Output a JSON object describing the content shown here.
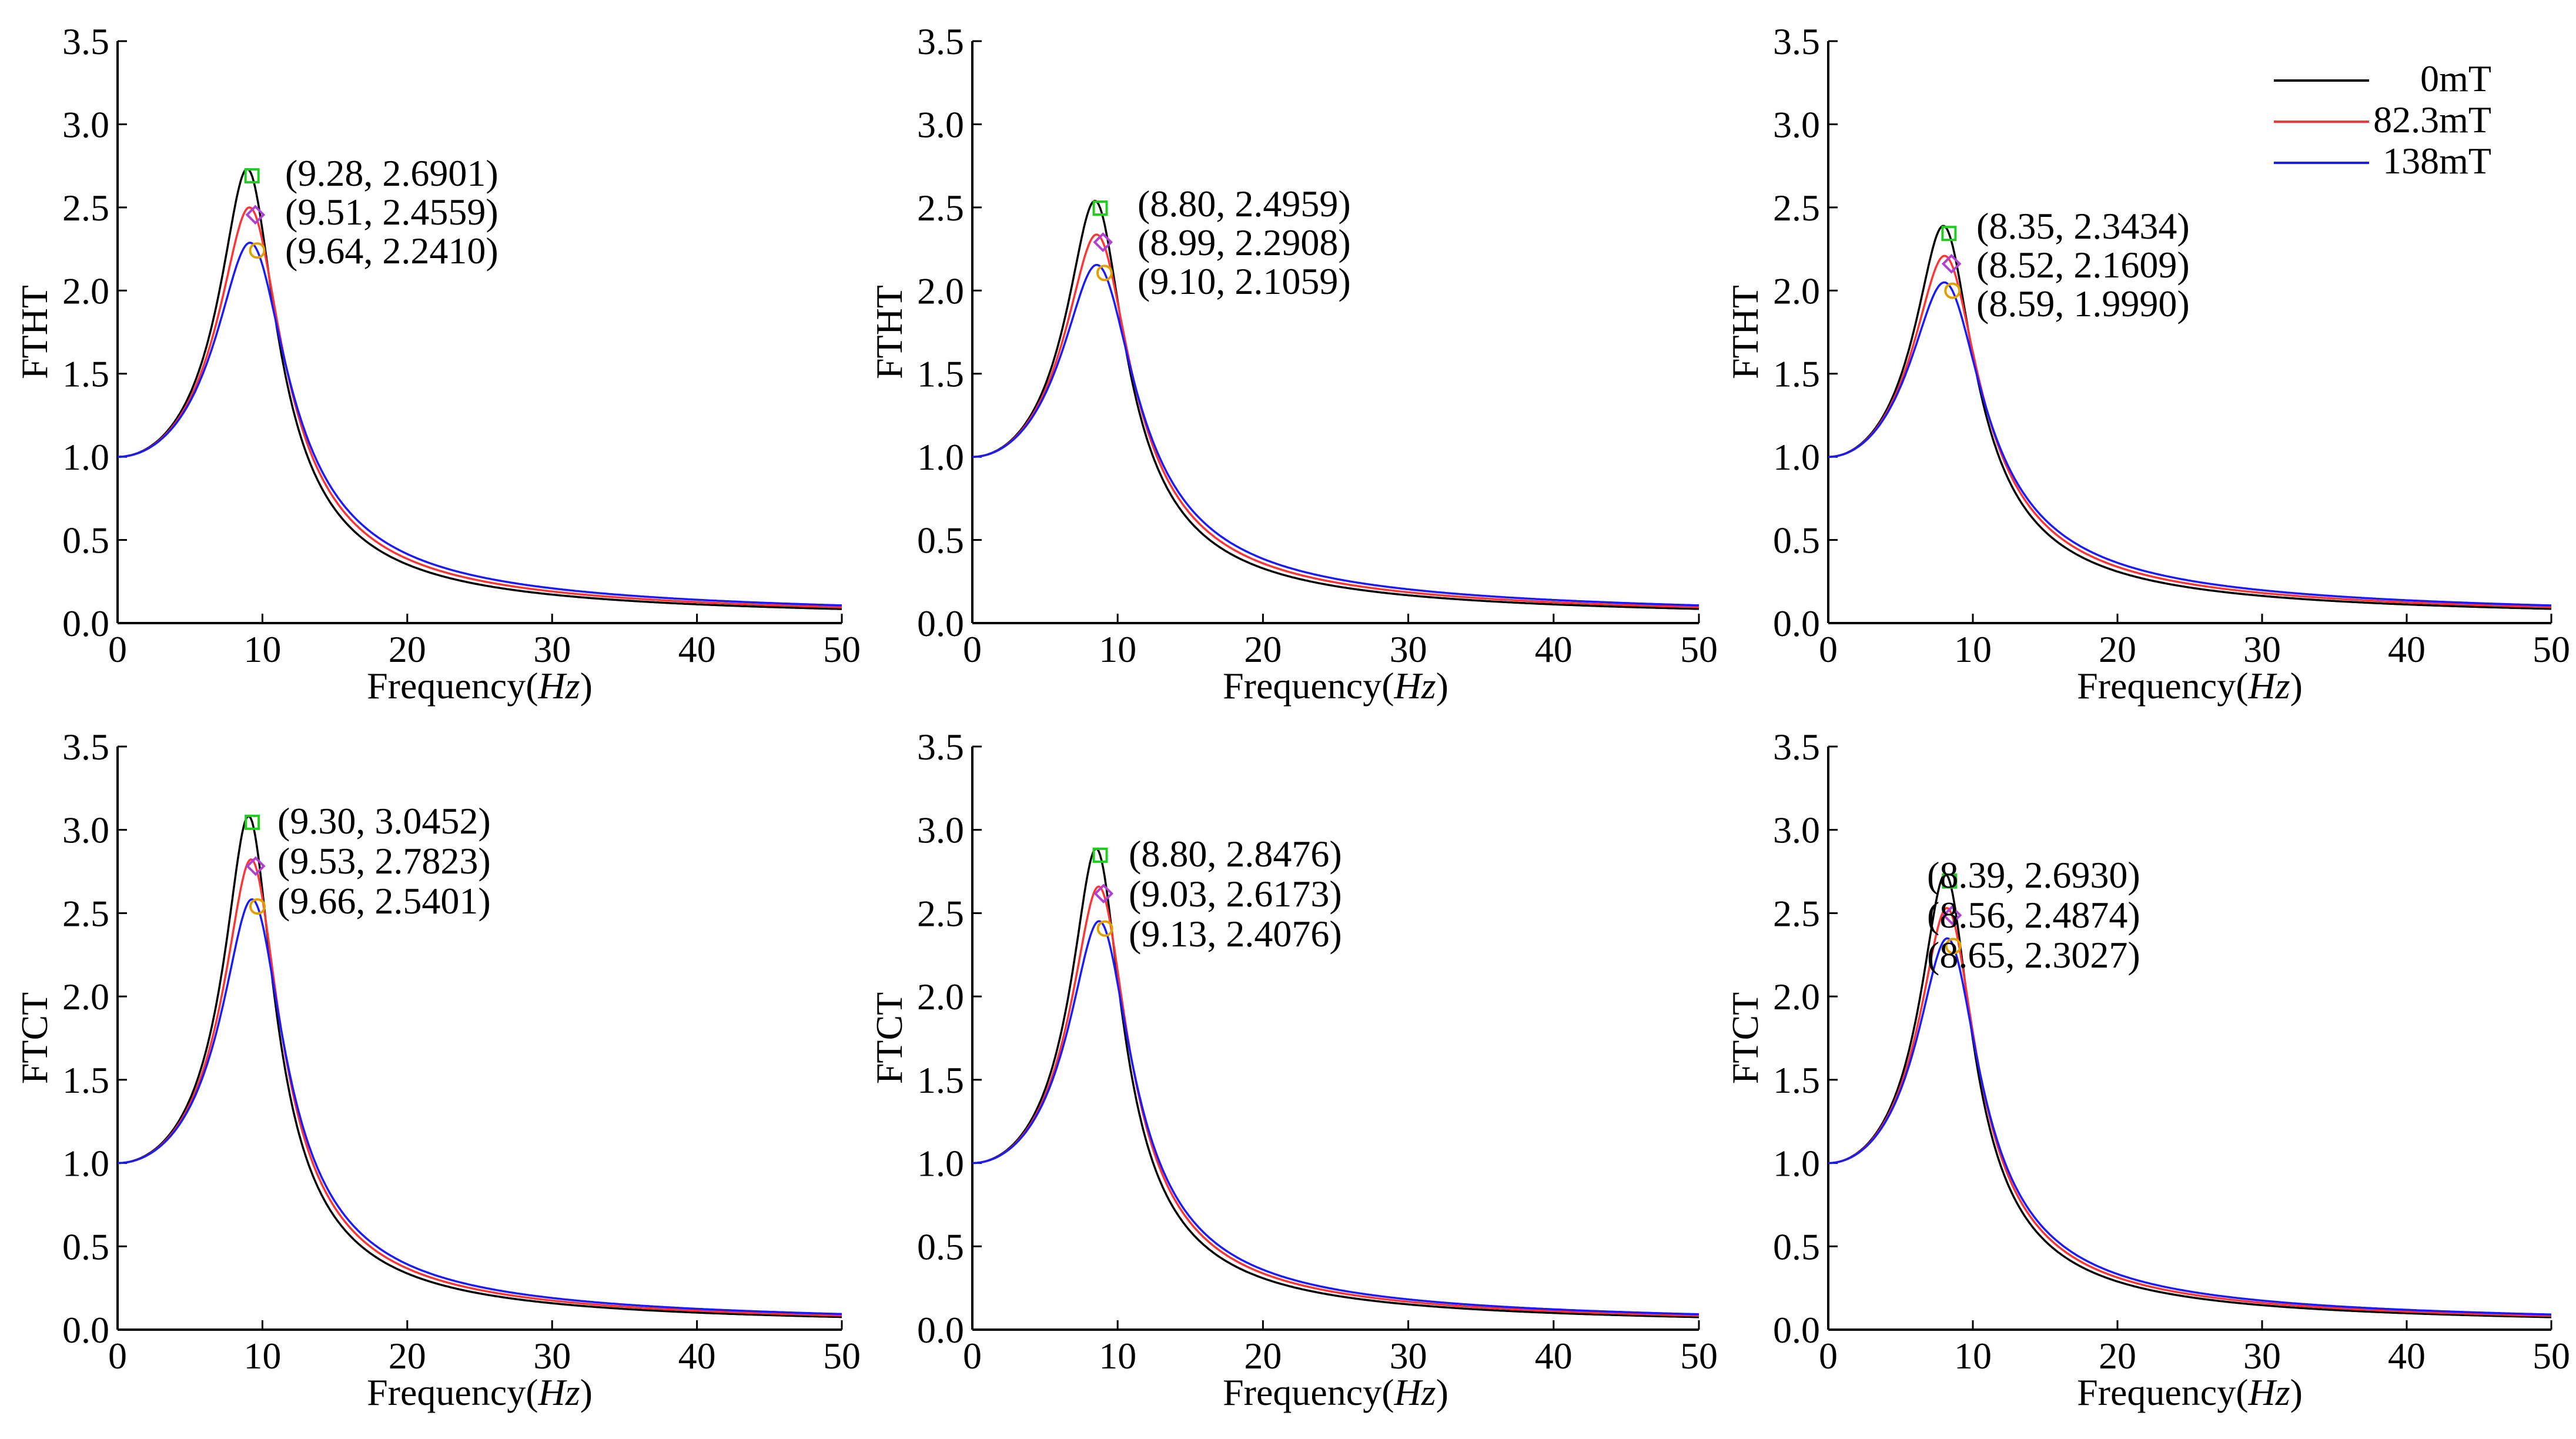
{
  "colors": {
    "s0": "#000000",
    "s1": "#ff3333",
    "s2": "#1a1aff",
    "m0": "#22cc22",
    "m1": "#b040d0",
    "m2": "#e0a000"
  },
  "legend": {
    "entries": [
      {
        "label": "0mT",
        "color": "#000000"
      },
      {
        "label": "82.3mT",
        "color": "#ff3333"
      },
      {
        "label": "138mT",
        "color": "#1a1aff"
      }
    ]
  },
  "chart_data": [
    {
      "type": "line",
      "ylabel": "FTHT",
      "xlabel": "Frequency",
      "xlabel_unit": "Hz",
      "xlim": [
        0,
        50
      ],
      "ylim": [
        0,
        3.5
      ],
      "xticks": [
        "0",
        "10",
        "20",
        "30",
        "40",
        "50"
      ],
      "yticks": [
        "0.0",
        "0.5",
        "1.0",
        "1.5",
        "2.0",
        "2.5",
        "3.0",
        "3.5"
      ],
      "series": [
        {
          "name": "0mT",
          "peak_x": 9.28,
          "peak_y": 2.6901
        },
        {
          "name": "82.3mT",
          "peak_x": 9.51,
          "peak_y": 2.4559
        },
        {
          "name": "138mT",
          "peak_x": 9.64,
          "peak_y": 2.241
        }
      ],
      "annotations": [
        "(9.28, 2.6901)",
        "(9.51, 2.4559)",
        "(9.64, 2.2410)"
      ]
    },
    {
      "type": "line",
      "ylabel": "FTHT",
      "xlabel": "Frequency",
      "xlabel_unit": "Hz",
      "xlim": [
        0,
        50
      ],
      "ylim": [
        0,
        3.5
      ],
      "xticks": [
        "0",
        "10",
        "20",
        "30",
        "40",
        "50"
      ],
      "yticks": [
        "0.0",
        "0.5",
        "1.0",
        "1.5",
        "2.0",
        "2.5",
        "3.0",
        "3.5"
      ],
      "series": [
        {
          "name": "0mT",
          "peak_x": 8.8,
          "peak_y": 2.4959
        },
        {
          "name": "82.3mT",
          "peak_x": 8.99,
          "peak_y": 2.2908
        },
        {
          "name": "138mT",
          "peak_x": 9.1,
          "peak_y": 2.1059
        }
      ],
      "annotations": [
        "(8.80, 2.4959)",
        "(8.99, 2.2908)",
        "(9.10, 2.1059)"
      ]
    },
    {
      "type": "line",
      "ylabel": "FTHT",
      "xlabel": "Frequency",
      "xlabel_unit": "Hz",
      "xlim": [
        0,
        50
      ],
      "ylim": [
        0,
        3.5
      ],
      "xticks": [
        "0",
        "10",
        "20",
        "30",
        "40",
        "50"
      ],
      "yticks": [
        "0.0",
        "0.5",
        "1.0",
        "1.5",
        "2.0",
        "2.5",
        "3.0",
        "3.5"
      ],
      "series": [
        {
          "name": "0mT",
          "peak_x": 8.35,
          "peak_y": 2.3434
        },
        {
          "name": "82.3mT",
          "peak_x": 8.52,
          "peak_y": 2.1609
        },
        {
          "name": "138mT",
          "peak_x": 8.59,
          "peak_y": 1.999
        }
      ],
      "annotations": [
        "(8.35, 2.3434)",
        "(8.52, 2.1609)",
        "(8.59, 1.9990)"
      ]
    },
    {
      "type": "line",
      "ylabel": "FTCT",
      "xlabel": "Frequency",
      "xlabel_unit": "Hz",
      "xlim": [
        0,
        50
      ],
      "ylim": [
        0,
        3.5
      ],
      "xticks": [
        "0",
        "10",
        "20",
        "30",
        "40",
        "50"
      ],
      "yticks": [
        "0.0",
        "0.5",
        "1.0",
        "1.5",
        "2.0",
        "2.5",
        "3.0",
        "3.5"
      ],
      "series": [
        {
          "name": "0mT",
          "peak_x": 9.3,
          "peak_y": 3.0452
        },
        {
          "name": "82.3mT",
          "peak_x": 9.53,
          "peak_y": 2.7823
        },
        {
          "name": "138mT",
          "peak_x": 9.66,
          "peak_y": 2.5401
        }
      ],
      "annotations": [
        "(9.30, 3.0452)",
        "(9.53, 2.7823)",
        "(9.66, 2.5401)"
      ]
    },
    {
      "type": "line",
      "ylabel": "FTCT",
      "xlabel": "Frequency",
      "xlabel_unit": "Hz",
      "xlim": [
        0,
        50
      ],
      "ylim": [
        0,
        3.5
      ],
      "xticks": [
        "0",
        "10",
        "20",
        "30",
        "40",
        "50"
      ],
      "yticks": [
        "0.0",
        "0.5",
        "1.0",
        "1.5",
        "2.0",
        "2.5",
        "3.0",
        "3.5"
      ],
      "series": [
        {
          "name": "0mT",
          "peak_x": 8.8,
          "peak_y": 2.8476
        },
        {
          "name": "82.3mT",
          "peak_x": 9.03,
          "peak_y": 2.6173
        },
        {
          "name": "138mT",
          "peak_x": 9.13,
          "peak_y": 2.4076
        }
      ],
      "annotations": [
        "(8.80, 2.8476)",
        "(9.03, 2.6173)",
        "(9.13, 2.4076)"
      ]
    },
    {
      "type": "line",
      "ylabel": "FTCT",
      "xlabel": "Frequency",
      "xlabel_unit": "Hz",
      "xlim": [
        0,
        50
      ],
      "ylim": [
        0,
        3.5
      ],
      "xticks": [
        "0",
        "10",
        "20",
        "30",
        "40",
        "50"
      ],
      "yticks": [
        "0.0",
        "0.5",
        "1.0",
        "1.5",
        "2.0",
        "2.5",
        "3.0",
        "3.5"
      ],
      "series": [
        {
          "name": "0mT",
          "peak_x": 8.39,
          "peak_y": 2.693
        },
        {
          "name": "82.3mT",
          "peak_x": 8.56,
          "peak_y": 2.4874
        },
        {
          "name": "138mT",
          "peak_x": 8.65,
          "peak_y": 2.3027
        }
      ],
      "annotations": [
        "(8.39, 2.6930)",
        "(8.56, 2.4874)",
        "(8.65, 2.3027)"
      ]
    }
  ]
}
